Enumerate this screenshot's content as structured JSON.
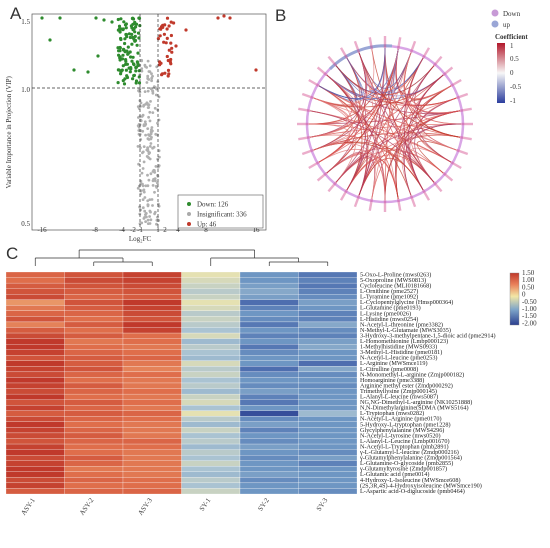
{
  "panels": {
    "a": "A",
    "b": "B",
    "c": "C"
  },
  "volcano": {
    "xlabel": "Log₂FC",
    "ylabel": "Variable Importance in Projection (VIP)",
    "xticks": [
      "-16",
      "-8",
      "-4",
      "-2",
      "-1",
      "1",
      "2",
      "4",
      "8",
      "16"
    ],
    "yticks": [
      "0.5",
      "1.0",
      "1.5"
    ],
    "legend": [
      {
        "label": "Down: 126",
        "color": "#2e8b2e"
      },
      {
        "label": "Insignificant: 336",
        "color": "#aaaaaa"
      },
      {
        "label": "Up: 46",
        "color": "#c0392b"
      }
    ]
  },
  "chord": {
    "legend": [
      {
        "label": "Down",
        "color": "#c79ad6"
      },
      {
        "label": "up",
        "color": "#9aa6d6"
      }
    ],
    "colorbar_title": "Coefficient",
    "colorbar_ticks": [
      "1",
      "0.5",
      "0",
      "-0.5",
      "-1"
    ]
  },
  "chart_data": {
    "type": "heatmap",
    "columns": [
      "ASY-1",
      "ASY-2",
      "ASY-3",
      "SY-1",
      "SY-2",
      "SY-3"
    ],
    "rows": [
      "5-Oxo-L-Proline (mws0263)",
      "5-Oxoproline (MWS0813)",
      "Cycloleucine (MLI0181668)",
      "L-Ornithine (pme2527)",
      "L-Tyramine (pme1092)",
      "L-Cyclopentylglycine (Hmsp000364)",
      "L-Glutamine (pme0193)",
      "L-Lysine (pme0026)",
      "L-Histidine (mws0254)",
      "N-Acetyl-L-threonine (pme3382)",
      "N-Methyl-L-Glutamate (MWS3035)",
      "3-Hydroxy-3-methylpentane-1,5-dioic acid (pme2914)",
      "L-Homomethionine (Lmbp000123)",
      "1-Methylhistidine (MWS0933)",
      "3-Methyl-L-Histidine (pme0181)",
      "N-Acetyl-L-leucine (pme0253)",
      "L-Arginine (MWSmce119)",
      "L-Citrulline (pme0008)",
      "N-Monomethyl-L-arginine (Zmjp000182)",
      "Homoarginine (pme3388)",
      "Arginine methyl ester (Zmdp000292)",
      "Trimethyllysine (Zmjp000145)",
      "L-Alanyl-L-leucine (mws5087)",
      "NG,NG-Dimethyl-L-arginine (NK10251888)",
      "N,N-Dimethylarginine(SDMA (MWS5164)",
      "L-Tryptophan (mws0282)",
      "N-Acetyl-L-Arginine (pme0170)",
      "5-Hydroxy-L-tryptophan (pme1228)",
      "Glycylphenylalanine (MWS4296)",
      "N-Acetyl-L-tyrosine (mws0520)",
      "L-Alanyl-L-Leucine (Lmbp001670)",
      "N-Acetyl-L-Tryptophan (pmb2891)",
      "γ-L-Glutamyl-L-leucine (Zmdp000216)",
      "γ-Glutamylphenylalanine (Zmdp001564)",
      "L-Glutamine-O-glycoside (pmb2855)",
      "γ-Glutamyltyrosine (Zmdp001857)",
      "L-Glutamic acid (pme0014)",
      "4-Hydroxy-L-Isoleucine (MWSmce608)",
      "(2S,3R,4S)-4-Hydroxyisoleucine (MWSmce190)",
      "L-Aspartic acid-O-diglucoside (pmb0464)"
    ],
    "values": [
      [
        1.1,
        1.3,
        1.5,
        -0.1,
        -1.0,
        -1.3
      ],
      [
        1.0,
        1.4,
        1.5,
        -0.2,
        -1.0,
        -1.2
      ],
      [
        1.2,
        1.3,
        1.4,
        -0.3,
        -0.9,
        -1.3
      ],
      [
        1.3,
        1.2,
        1.3,
        -0.4,
        -0.8,
        -1.2
      ],
      [
        1.4,
        1.1,
        1.2,
        -0.3,
        -0.9,
        -1.1
      ],
      [
        0.6,
        1.3,
        1.6,
        -0.1,
        -1.4,
        -0.9
      ],
      [
        0.9,
        1.2,
        1.5,
        -0.2,
        -1.2,
        -1.0
      ],
      [
        1.1,
        1.1,
        1.4,
        -0.4,
        -1.0,
        -1.2
      ],
      [
        1.3,
        1.0,
        1.3,
        -0.3,
        -1.1,
        -1.2
      ],
      [
        0.8,
        1.2,
        1.6,
        -0.4,
        -1.3,
        -0.8
      ],
      [
        1.2,
        1.0,
        1.5,
        -0.5,
        -1.0,
        -1.1
      ],
      [
        1.4,
        1.2,
        1.0,
        -0.2,
        -1.2,
        -1.2
      ],
      [
        1.7,
        0.9,
        1.0,
        -0.6,
        -1.0,
        -0.9
      ],
      [
        1.6,
        1.0,
        0.9,
        -0.4,
        -1.3,
        -0.8
      ],
      [
        1.5,
        1.1,
        1.0,
        -0.5,
        -1.1,
        -1.0
      ],
      [
        1.3,
        1.2,
        1.1,
        -0.6,
        -1.0,
        -1.0
      ],
      [
        1.6,
        1.2,
        0.9,
        -0.2,
        -1.0,
        -1.4
      ],
      [
        1.5,
        1.3,
        0.8,
        -0.4,
        -1.4,
        -0.8
      ],
      [
        1.4,
        1.1,
        1.0,
        -0.3,
        -1.1,
        -1.1
      ],
      [
        1.6,
        1.0,
        0.9,
        -0.5,
        -1.0,
        -1.0
      ],
      [
        1.5,
        1.2,
        0.9,
        -0.4,
        -1.1,
        -1.1
      ],
      [
        1.4,
        1.1,
        1.0,
        -0.6,
        -0.9,
        -1.0
      ],
      [
        1.6,
        1.0,
        0.9,
        -0.3,
        -1.2,
        -1.0
      ],
      [
        1.3,
        1.2,
        1.0,
        -0.2,
        -1.3,
        -1.0
      ],
      [
        1.5,
        1.1,
        0.9,
        -0.5,
        -1.0,
        -1.0
      ],
      [
        1.2,
        1.2,
        1.1,
        -0.1,
        -1.8,
        -0.6
      ],
      [
        1.4,
        1.1,
        1.0,
        -0.4,
        -1.1,
        -1.0
      ],
      [
        1.6,
        1.0,
        0.9,
        -0.6,
        -0.9,
        -1.0
      ],
      [
        1.5,
        1.1,
        0.9,
        -0.3,
        -1.2,
        -1.0
      ],
      [
        1.4,
        1.2,
        0.9,
        -0.5,
        -1.0,
        -1.0
      ],
      [
        1.3,
        1.1,
        1.1,
        -0.4,
        -1.1,
        -1.0
      ],
      [
        1.5,
        1.0,
        1.0,
        -0.6,
        -0.9,
        -1.0
      ],
      [
        1.6,
        1.0,
        0.9,
        -0.4,
        -1.0,
        -1.1
      ],
      [
        1.4,
        1.2,
        0.9,
        -0.5,
        -1.1,
        -0.9
      ],
      [
        1.5,
        1.1,
        0.9,
        -0.3,
        -1.0,
        -1.2
      ],
      [
        1.7,
        0.9,
        0.9,
        -0.5,
        -1.0,
        -1.0
      ],
      [
        1.6,
        1.0,
        0.9,
        -0.6,
        -0.9,
        -1.0
      ],
      [
        1.4,
        1.1,
        1.0,
        -0.4,
        -1.1,
        -1.0
      ],
      [
        1.5,
        1.0,
        1.0,
        -0.5,
        -1.0,
        -1.0
      ],
      [
        1.2,
        1.1,
        1.1,
        -0.3,
        -1.0,
        -1.1
      ]
    ],
    "legend_ticks": [
      "1.50",
      "1.00",
      "0.50",
      "0",
      "-0.50",
      "-1.00",
      "-1.50",
      "-2.00"
    ],
    "vmin": -2.0,
    "vmax": 1.6
  }
}
